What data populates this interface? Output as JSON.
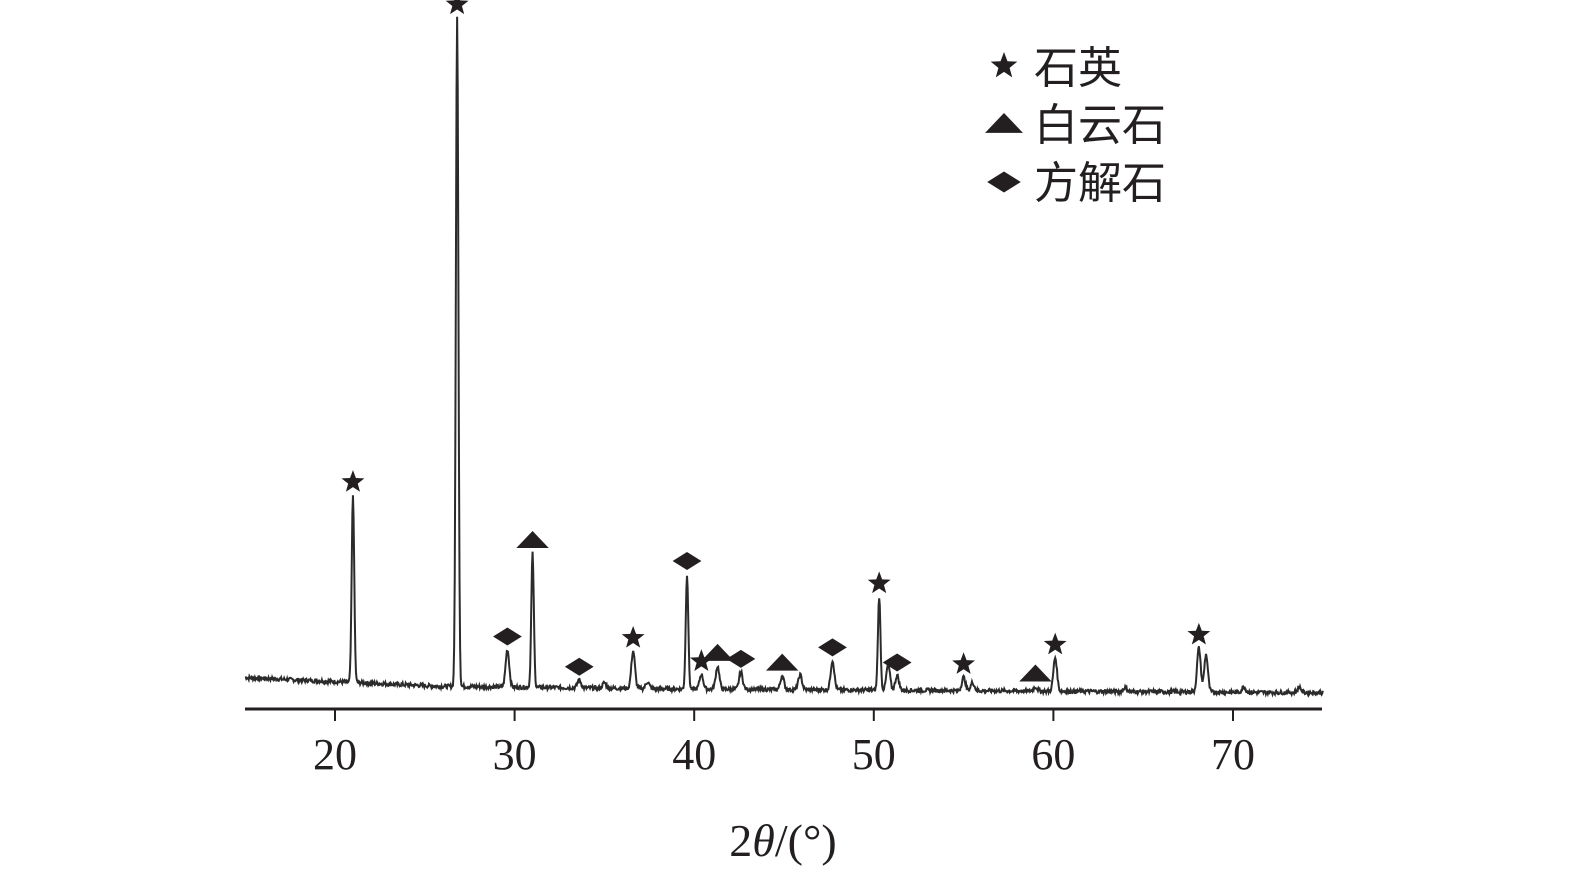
{
  "chart_data": {
    "type": "line",
    "title": "",
    "xlabel": {
      "prefix": "2",
      "italic": "θ",
      "suffix": "/(°)"
    },
    "ylabel": "",
    "xlim": [
      15,
      75
    ],
    "ylim": [
      0,
      100
    ],
    "xticks": [
      20,
      30,
      40,
      50,
      60,
      70
    ],
    "y_axis_visible": false,
    "grid": false,
    "legend_position": "top-right",
    "colors": {
      "line": "#2b2b2b",
      "marker": "#231f20",
      "axis": "#231f20"
    },
    "legend": [
      {
        "marker": "star",
        "label": "石英"
      },
      {
        "marker": "triangle",
        "label": "白云石"
      },
      {
        "marker": "diamond",
        "label": "方解石"
      }
    ],
    "peaks": [
      {
        "x": 21.0,
        "y": 28.0,
        "phase": "star"
      },
      {
        "x": 26.8,
        "y": 100.0,
        "phase": "star"
      },
      {
        "x": 29.6,
        "y": 5.6,
        "phase": "diamond"
      },
      {
        "x": 31.0,
        "y": 20.0,
        "phase": "triangle"
      },
      {
        "x": 33.6,
        "y": 1.2,
        "phase": "diamond"
      },
      {
        "x": 35.0,
        "y": 0.8,
        "phase": null
      },
      {
        "x": 36.6,
        "y": 5.6,
        "phase": "star"
      },
      {
        "x": 37.4,
        "y": 1.0,
        "phase": null
      },
      {
        "x": 39.6,
        "y": 17.2,
        "phase": "diamond"
      },
      {
        "x": 40.4,
        "y": 2.2,
        "phase": "star"
      },
      {
        "x": 41.3,
        "y": 3.4,
        "phase": "triangle"
      },
      {
        "x": 42.6,
        "y": 2.6,
        "phase": "diamond"
      },
      {
        "x": 44.9,
        "y": 2.0,
        "phase": "triangle"
      },
      {
        "x": 45.9,
        "y": 2.2,
        "phase": null
      },
      {
        "x": 47.7,
        "y": 4.4,
        "phase": "diamond"
      },
      {
        "x": 50.3,
        "y": 14.0,
        "phase": "star"
      },
      {
        "x": 50.8,
        "y": 3.8,
        "phase": null
      },
      {
        "x": 51.3,
        "y": 2.2,
        "phase": "diamond"
      },
      {
        "x": 55.0,
        "y": 2.0,
        "phase": "star"
      },
      {
        "x": 55.5,
        "y": 1.2,
        "phase": null
      },
      {
        "x": 59.0,
        "y": 0.6,
        "phase": "triangle"
      },
      {
        "x": 60.1,
        "y": 5.0,
        "phase": "star"
      },
      {
        "x": 64.0,
        "y": 0.6,
        "phase": null
      },
      {
        "x": 68.1,
        "y": 6.6,
        "phase": "star"
      },
      {
        "x": 68.5,
        "y": 5.6,
        "phase": null
      },
      {
        "x": 70.6,
        "y": 0.8,
        "phase": null
      },
      {
        "x": 73.7,
        "y": 0.8,
        "phase": null
      }
    ]
  }
}
